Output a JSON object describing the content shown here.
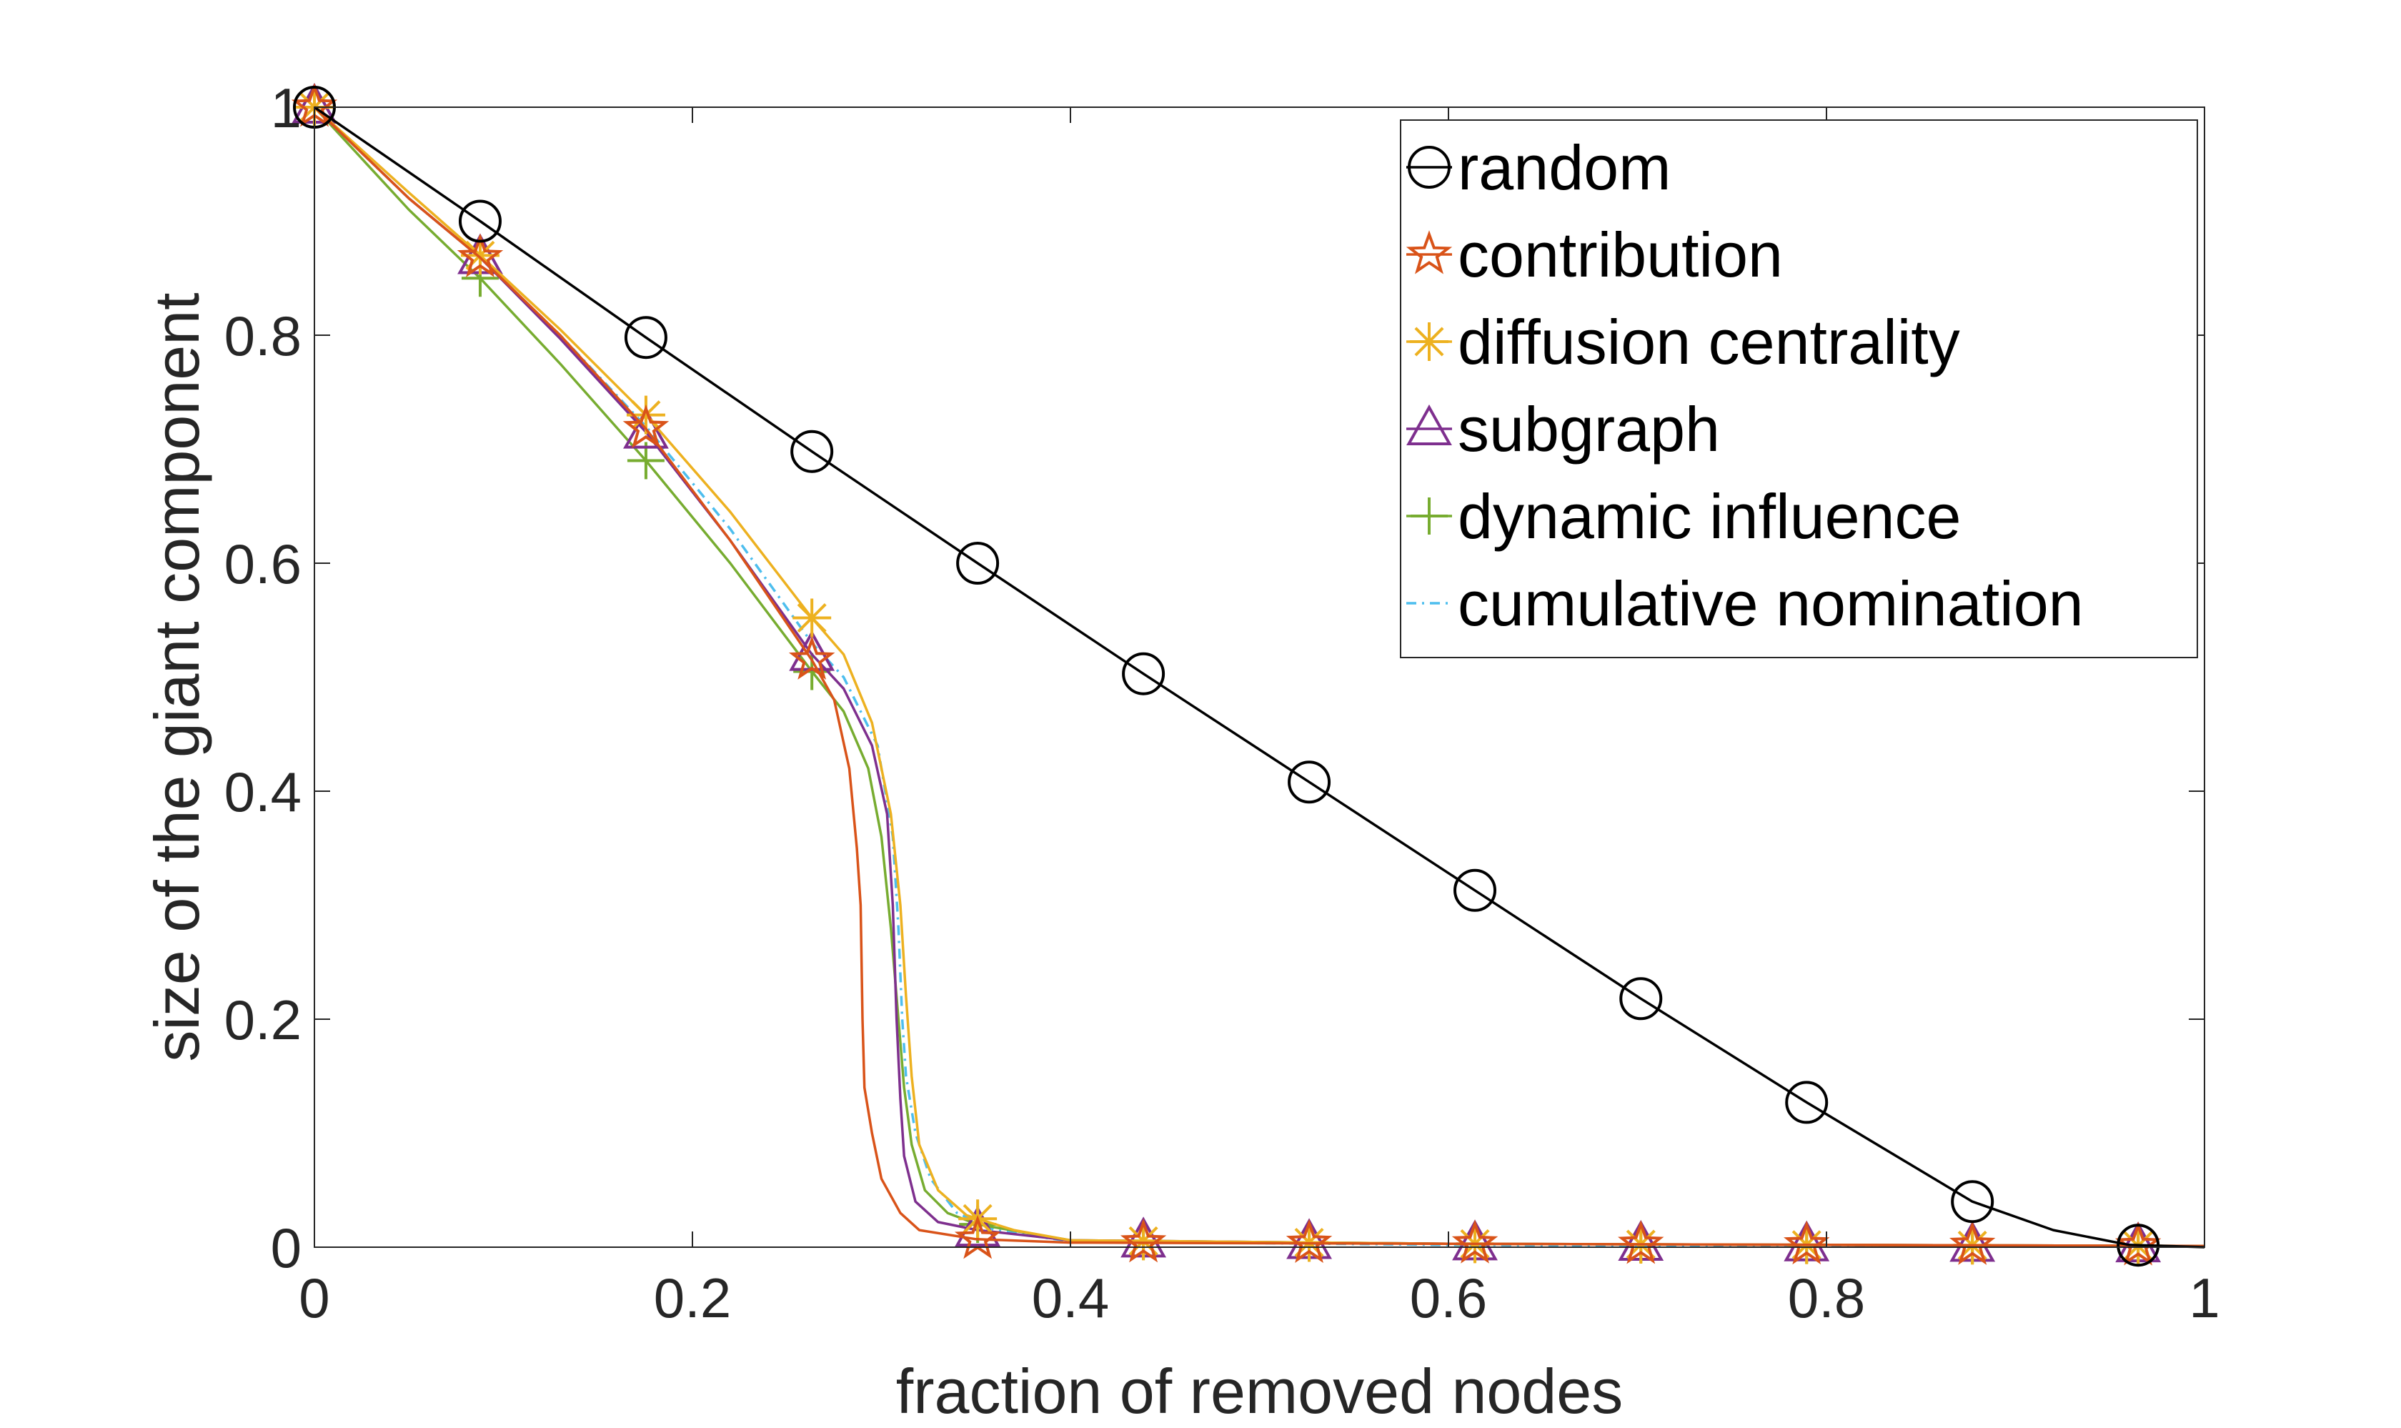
{
  "chart_data": {
    "type": "line",
    "title": "",
    "xlabel": "fraction of removed nodes",
    "ylabel": "size of the giant component",
    "xlim": [
      0,
      1
    ],
    "ylim": [
      0,
      1
    ],
    "x_ticks": [
      0,
      0.2,
      0.4,
      0.6,
      0.8,
      1
    ],
    "x_tick_labels": [
      "0",
      "0.2",
      "0.4",
      "0.6",
      "0.8",
      "1"
    ],
    "y_ticks": [
      0,
      0.2,
      0.4,
      0.6,
      0.8,
      1
    ],
    "y_tick_labels": [
      "0",
      "0.2",
      "0.4",
      "0.6",
      "0.8",
      "1"
    ],
    "grid": false,
    "box": true,
    "legend_position": "top-right",
    "series": [
      {
        "name": "random",
        "color": "#000000",
        "marker": "circle",
        "line": "solid",
        "points": [
          [
            0,
            1
          ],
          [
            0.0877,
            0.9
          ],
          [
            0.1754,
            0.798
          ],
          [
            0.2632,
            0.698
          ],
          [
            0.3509,
            0.6
          ],
          [
            0.4386,
            0.503
          ],
          [
            0.5263,
            0.408
          ],
          [
            0.614,
            0.313
          ],
          [
            0.7018,
            0.218
          ],
          [
            0.7895,
            0.127
          ],
          [
            0.8772,
            0.04
          ],
          [
            0.92,
            0.015
          ],
          [
            0.96,
            0.002
          ],
          [
            1,
            0
          ]
        ],
        "marker_x": [
          0,
          0.0877,
          0.1754,
          0.2632,
          0.3509,
          0.4386,
          0.5263,
          0.614,
          0.7018,
          0.7895,
          0.8772,
          0.9649
        ]
      },
      {
        "name": "contribution",
        "color": "#d95319",
        "marker": "pentagram",
        "line": "solid",
        "points": [
          [
            0,
            1
          ],
          [
            0.05,
            0.92
          ],
          [
            0.0877,
            0.868
          ],
          [
            0.13,
            0.8
          ],
          [
            0.1754,
            0.718
          ],
          [
            0.22,
            0.62
          ],
          [
            0.2632,
            0.515
          ],
          [
            0.275,
            0.48
          ],
          [
            0.283,
            0.42
          ],
          [
            0.287,
            0.35
          ],
          [
            0.289,
            0.3
          ],
          [
            0.29,
            0.2
          ],
          [
            0.291,
            0.14
          ],
          [
            0.295,
            0.1
          ],
          [
            0.3,
            0.06
          ],
          [
            0.31,
            0.03
          ],
          [
            0.32,
            0.015
          ],
          [
            0.35,
            0.007
          ],
          [
            0.4,
            0.004
          ],
          [
            0.6,
            0.003
          ],
          [
            0.8,
            0.002
          ],
          [
            1,
            0.001
          ]
        ],
        "marker_x": [
          0,
          0.0877,
          0.1754,
          0.2632,
          0.3509,
          0.4386,
          0.5263,
          0.614,
          0.7018,
          0.7895,
          0.8772,
          0.9649
        ]
      },
      {
        "name": "diffusion centrality",
        "color": "#edb120",
        "marker": "asterisk",
        "line": "solid",
        "points": [
          [
            0,
            1
          ],
          [
            0.05,
            0.925
          ],
          [
            0.0877,
            0.87
          ],
          [
            0.13,
            0.805
          ],
          [
            0.1754,
            0.73
          ],
          [
            0.22,
            0.645
          ],
          [
            0.2632,
            0.552
          ],
          [
            0.28,
            0.52
          ],
          [
            0.295,
            0.46
          ],
          [
            0.305,
            0.38
          ],
          [
            0.31,
            0.3
          ],
          [
            0.313,
            0.22
          ],
          [
            0.316,
            0.15
          ],
          [
            0.32,
            0.09
          ],
          [
            0.33,
            0.05
          ],
          [
            0.345,
            0.028
          ],
          [
            0.37,
            0.015
          ],
          [
            0.4,
            0.006
          ],
          [
            0.6,
            0.003
          ],
          [
            0.8,
            0.002
          ],
          [
            1,
            0.001
          ]
        ],
        "marker_x": [
          0,
          0.0877,
          0.1754,
          0.2632,
          0.3509,
          0.4386,
          0.5263,
          0.614,
          0.7018,
          0.7895,
          0.8772,
          0.9649
        ]
      },
      {
        "name": "subgraph",
        "color": "#7e2f8e",
        "marker": "triangle",
        "line": "solid",
        "points": [
          [
            0,
            1
          ],
          [
            0.05,
            0.92
          ],
          [
            0.0877,
            0.868
          ],
          [
            0.13,
            0.797
          ],
          [
            0.1754,
            0.715
          ],
          [
            0.22,
            0.62
          ],
          [
            0.2632,
            0.52
          ],
          [
            0.28,
            0.49
          ],
          [
            0.295,
            0.44
          ],
          [
            0.303,
            0.38
          ],
          [
            0.306,
            0.3
          ],
          [
            0.308,
            0.2
          ],
          [
            0.31,
            0.13
          ],
          [
            0.312,
            0.08
          ],
          [
            0.318,
            0.04
          ],
          [
            0.33,
            0.022
          ],
          [
            0.3509,
            0.015
          ],
          [
            0.4,
            0.006
          ],
          [
            0.6,
            0.003
          ],
          [
            0.8,
            0.002
          ],
          [
            1,
            0.001
          ]
        ],
        "marker_x": [
          0,
          0.0877,
          0.1754,
          0.2632,
          0.3509,
          0.4386,
          0.5263,
          0.614,
          0.7018,
          0.7895,
          0.8772,
          0.9649
        ]
      },
      {
        "name": "dynamic influence",
        "color": "#77ac30",
        "marker": "plus",
        "line": "solid",
        "points": [
          [
            0,
            1
          ],
          [
            0.05,
            0.91
          ],
          [
            0.0877,
            0.85
          ],
          [
            0.13,
            0.775
          ],
          [
            0.1754,
            0.69
          ],
          [
            0.22,
            0.6
          ],
          [
            0.2632,
            0.505
          ],
          [
            0.28,
            0.47
          ],
          [
            0.293,
            0.42
          ],
          [
            0.3,
            0.36
          ],
          [
            0.305,
            0.28
          ],
          [
            0.309,
            0.2
          ],
          [
            0.312,
            0.14
          ],
          [
            0.316,
            0.09
          ],
          [
            0.323,
            0.05
          ],
          [
            0.335,
            0.03
          ],
          [
            0.3509,
            0.02
          ],
          [
            0.4,
            0.006
          ],
          [
            0.6,
            0.003
          ],
          [
            0.8,
            0.002
          ],
          [
            1,
            0.001
          ]
        ],
        "marker_x": [
          0,
          0.0877,
          0.1754,
          0.2632,
          0.3509,
          0.4386,
          0.5263,
          0.614,
          0.7018,
          0.7895,
          0.8772,
          0.9649
        ]
      },
      {
        "name": "cumulative nomination",
        "color": "#4dbeee",
        "marker": "none",
        "line": "dash-dot",
        "points": [
          [
            0,
            1
          ],
          [
            0.05,
            0.92
          ],
          [
            0.0877,
            0.868
          ],
          [
            0.13,
            0.8
          ],
          [
            0.1754,
            0.72
          ],
          [
            0.22,
            0.63
          ],
          [
            0.2632,
            0.53
          ],
          [
            0.28,
            0.5
          ],
          [
            0.298,
            0.44
          ],
          [
            0.306,
            0.36
          ],
          [
            0.309,
            0.28
          ],
          [
            0.311,
            0.2
          ],
          [
            0.313,
            0.15
          ],
          [
            0.318,
            0.1
          ],
          [
            0.326,
            0.06
          ],
          [
            0.34,
            0.03
          ],
          [
            0.36,
            0.015
          ],
          [
            0.4,
            0.005
          ],
          [
            0.6,
            0.002
          ],
          [
            0.8,
            0.001
          ],
          [
            1,
            0.001
          ]
        ],
        "marker_x": []
      }
    ]
  }
}
